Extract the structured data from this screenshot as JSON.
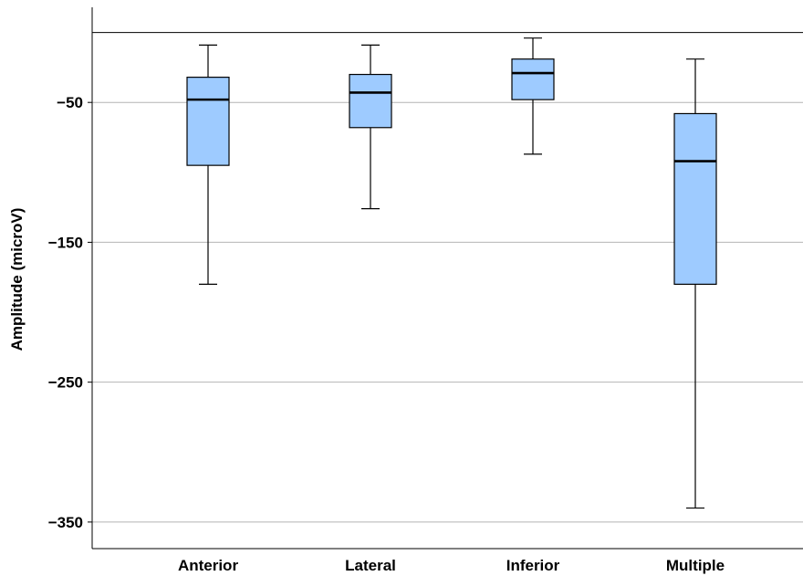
{
  "chart_data": {
    "type": "boxplot",
    "title": "",
    "xlabel": "",
    "ylabel": "Amplitude (microV)",
    "ylim": [
      -369,
      18
    ],
    "yticks": [
      -50,
      -150,
      -250,
      -350
    ],
    "ytick_labels": [
      "−50",
      "−150",
      "−250",
      "−350"
    ],
    "grid": "horizontal",
    "reference_line": 0,
    "categories": [
      "Anterior",
      "Lateral",
      "Inferior",
      "Multiple"
    ],
    "boxes": [
      {
        "category": "Anterior",
        "whisker_high": -9,
        "q3": -32,
        "median": -48,
        "q1": -95,
        "whisker_low": -180
      },
      {
        "category": "Lateral",
        "whisker_high": -9,
        "q3": -30,
        "median": -43,
        "q1": -68,
        "whisker_low": -126
      },
      {
        "category": "Inferior",
        "whisker_high": -4,
        "q3": -19,
        "median": -29,
        "q1": -48,
        "whisker_low": -87
      },
      {
        "category": "Multiple",
        "whisker_high": -19,
        "q3": -58,
        "median": -92,
        "q1": -180,
        "whisker_low": -340
      }
    ],
    "colors": {
      "box_fill": "#9ECBFF",
      "stroke": "#000000",
      "grid": "#B4B4B4"
    }
  }
}
